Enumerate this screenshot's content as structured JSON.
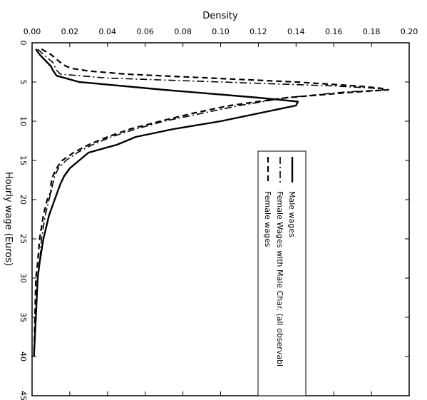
{
  "chart_data": {
    "type": "line",
    "orientation": "rotated-90-clockwise",
    "title": "",
    "xlabel": "Density",
    "ylabel": "Hourly wage (Euros)",
    "density_range": [
      0,
      0.2
    ],
    "density_ticks": [
      "0.00",
      "0.02",
      "0.04",
      "0.06",
      "0.08",
      "0.10",
      "0.12",
      "0.14",
      "0.16",
      "0.18",
      "0.20"
    ],
    "density_tick_values": [
      0,
      0.02,
      0.04,
      0.06,
      0.08,
      0.1,
      0.12,
      0.14,
      0.16,
      0.18,
      0.2
    ],
    "wage_range": [
      0,
      45
    ],
    "wage_ticks": [
      "0",
      "5",
      "10",
      "15",
      "20",
      "25",
      "30",
      "35",
      "40",
      "45"
    ],
    "wage_tick_values": [
      0,
      5,
      10,
      15,
      20,
      25,
      30,
      35,
      40,
      45
    ],
    "grid": false,
    "legend_position": "right",
    "series": [
      {
        "name": "Male wages",
        "style": "solid",
        "points": [
          [
            0.8,
            0.002
          ],
          [
            1.5,
            0.004
          ],
          [
            2.5,
            0.008
          ],
          [
            3.0,
            0.01
          ],
          [
            3.5,
            0.011
          ],
          [
            4.2,
            0.013
          ],
          [
            5.0,
            0.025
          ],
          [
            6.0,
            0.07
          ],
          [
            7.0,
            0.12
          ],
          [
            7.5,
            0.141
          ],
          [
            8.0,
            0.14
          ],
          [
            9.0,
            0.12
          ],
          [
            10.0,
            0.1
          ],
          [
            11.0,
            0.075
          ],
          [
            12.0,
            0.055
          ],
          [
            12.5,
            0.05
          ],
          [
            13.0,
            0.045
          ],
          [
            14.0,
            0.03
          ],
          [
            15.0,
            0.025
          ],
          [
            16.0,
            0.02
          ],
          [
            17.0,
            0.017
          ],
          [
            18.0,
            0.015
          ],
          [
            20.0,
            0.012
          ],
          [
            22.0,
            0.009
          ],
          [
            25.0,
            0.006
          ],
          [
            28.0,
            0.004
          ],
          [
            30.0,
            0.003
          ],
          [
            35.0,
            0.002
          ],
          [
            40.0,
            0.001
          ]
        ]
      },
      {
        "name": "Female Wages with Male Char. (all observabl",
        "style": "dash-dot",
        "points": [
          [
            0.8,
            0.003
          ],
          [
            1.5,
            0.006
          ],
          [
            2.5,
            0.011
          ],
          [
            3.0,
            0.012
          ],
          [
            3.5,
            0.013
          ],
          [
            4.0,
            0.015
          ],
          [
            4.5,
            0.04
          ],
          [
            5.0,
            0.1
          ],
          [
            5.5,
            0.16
          ],
          [
            5.8,
            0.182
          ],
          [
            6.0,
            0.187
          ],
          [
            6.3,
            0.165
          ],
          [
            7.0,
            0.135
          ],
          [
            8.0,
            0.11
          ],
          [
            9.0,
            0.09
          ],
          [
            10.0,
            0.07
          ],
          [
            11.0,
            0.055
          ],
          [
            12.0,
            0.042
          ],
          [
            13.0,
            0.032
          ],
          [
            14.0,
            0.024
          ],
          [
            15.0,
            0.018
          ],
          [
            16.0,
            0.014
          ],
          [
            17.0,
            0.012
          ],
          [
            18.0,
            0.011
          ],
          [
            19.0,
            0.01
          ],
          [
            20.0,
            0.009
          ],
          [
            22.0,
            0.007
          ],
          [
            25.0,
            0.005
          ],
          [
            28.0,
            0.004
          ],
          [
            30.0,
            0.003
          ],
          [
            35.0,
            0.002
          ],
          [
            40.0,
            0.001
          ]
        ]
      },
      {
        "name": "Female wages",
        "style": "dashed",
        "points": [
          [
            0.8,
            0.005
          ],
          [
            1.5,
            0.01
          ],
          [
            2.5,
            0.015
          ],
          [
            3.0,
            0.018
          ],
          [
            3.3,
            0.022
          ],
          [
            3.6,
            0.03
          ],
          [
            4.0,
            0.05
          ],
          [
            4.5,
            0.095
          ],
          [
            5.0,
            0.14
          ],
          [
            5.5,
            0.172
          ],
          [
            5.8,
            0.185
          ],
          [
            6.0,
            0.189
          ],
          [
            6.3,
            0.17
          ],
          [
            7.0,
            0.135
          ],
          [
            8.0,
            0.105
          ],
          [
            9.0,
            0.085
          ],
          [
            10.0,
            0.068
          ],
          [
            11.0,
            0.052
          ],
          [
            12.0,
            0.04
          ],
          [
            13.0,
            0.03
          ],
          [
            14.0,
            0.022
          ],
          [
            15.0,
            0.016
          ],
          [
            16.0,
            0.013
          ],
          [
            17.0,
            0.011
          ],
          [
            18.0,
            0.01
          ],
          [
            19.0,
            0.01
          ],
          [
            20.0,
            0.008
          ],
          [
            22.0,
            0.006
          ],
          [
            25.0,
            0.004
          ],
          [
            28.0,
            0.003
          ],
          [
            30.0,
            0.002
          ],
          [
            35.0,
            0.0015
          ],
          [
            40.0,
            0.001
          ]
        ]
      }
    ]
  }
}
